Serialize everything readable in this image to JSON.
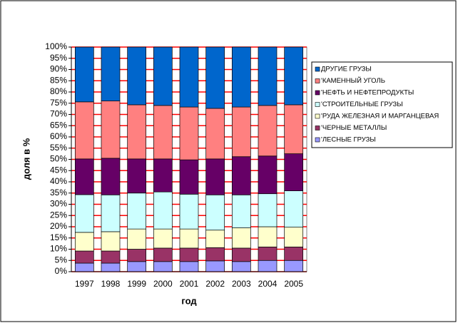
{
  "chart_data": {
    "type": "stacked_bar_percent",
    "x_label": "год",
    "y_label": "доля в %",
    "categories": [
      "1997",
      "1998",
      "1999",
      "2000",
      "2001",
      "2002",
      "2003",
      "2004",
      "2005"
    ],
    "series": [
      {
        "name": "'ЛЕСНЫЕ ГРУЗЫ",
        "color": "#9999ff",
        "values": [
          3.8,
          3.8,
          4.5,
          4.5,
          4.5,
          4.8,
          4.5,
          5,
          5
        ]
      },
      {
        "name": "'ЧЕРНЫЕ МЕТАЛЛЫ",
        "color": "#993366",
        "values": [
          5.4,
          5.4,
          5.5,
          6,
          6,
          5.9,
          6,
          6,
          6
        ]
      },
      {
        "name": "'РУДА ЖЕЛЕЗНАЯ И МАРГАНЦЕВАЯ",
        "color": "#ffffcc",
        "values": [
          8.3,
          8.6,
          9,
          8.5,
          8.5,
          7.8,
          9,
          9,
          8.8
        ]
      },
      {
        "name": "'СТРОИТЕЛЬНЫЕ ГРУЗЫ",
        "color": "#ccffff",
        "values": [
          16.8,
          16.4,
          16,
          16.5,
          15.5,
          15.7,
          14.7,
          14.7,
          16.2
        ]
      },
      {
        "name": "'НЕФТЬ И НЕФТЕПРОДУКТЫ",
        "color": "#660066",
        "values": [
          15.9,
          16.3,
          15.2,
          14.7,
          15.3,
          16,
          17,
          16.8,
          16.5
        ]
      },
      {
        "name": "'КАМЕННЫЙ УГОЛЬ",
        "color": "#ff8080",
        "values": [
          25.4,
          25.5,
          24.1,
          23.8,
          23.5,
          22.5,
          22.1,
          22.5,
          21.8
        ]
      },
      {
        "name": "ДРУГИЕ ГРУЗЫ",
        "color": "#0066cc",
        "values": [
          24.4,
          24,
          25.7,
          26,
          26.7,
          27.3,
          26.7,
          26,
          25.7
        ]
      }
    ],
    "ylim": [
      0,
      100
    ],
    "yticks": [
      {
        "value": 0,
        "label": "0%"
      },
      {
        "value": 5,
        "label": "5%"
      },
      {
        "value": 10,
        "label": "10%"
      },
      {
        "value": 15,
        "label": "15%"
      },
      {
        "value": 20,
        "label": "20%"
      },
      {
        "value": 25,
        "label": "25%"
      },
      {
        "value": 30,
        "label": "30%"
      },
      {
        "value": 35,
        "label": "35%"
      },
      {
        "value": 40,
        "label": "40%"
      },
      {
        "value": 45,
        "label": "45%"
      },
      {
        "value": 50,
        "label": "50%"
      },
      {
        "value": 55,
        "label": "55%"
      },
      {
        "value": 60,
        "label": "60%"
      },
      {
        "value": 65,
        "label": "65%"
      },
      {
        "value": 70,
        "label": "70%"
      },
      {
        "value": 75,
        "label": "75%"
      },
      {
        "value": 80,
        "label": "80%"
      },
      {
        "value": 85,
        "label": "85%"
      },
      {
        "value": 90,
        "label": "90%"
      },
      {
        "value": 95,
        "label": "95%"
      },
      {
        "value": 100,
        "label": "100%"
      }
    ],
    "grid": true,
    "grid_color": "#ff0000",
    "legend": "right"
  }
}
